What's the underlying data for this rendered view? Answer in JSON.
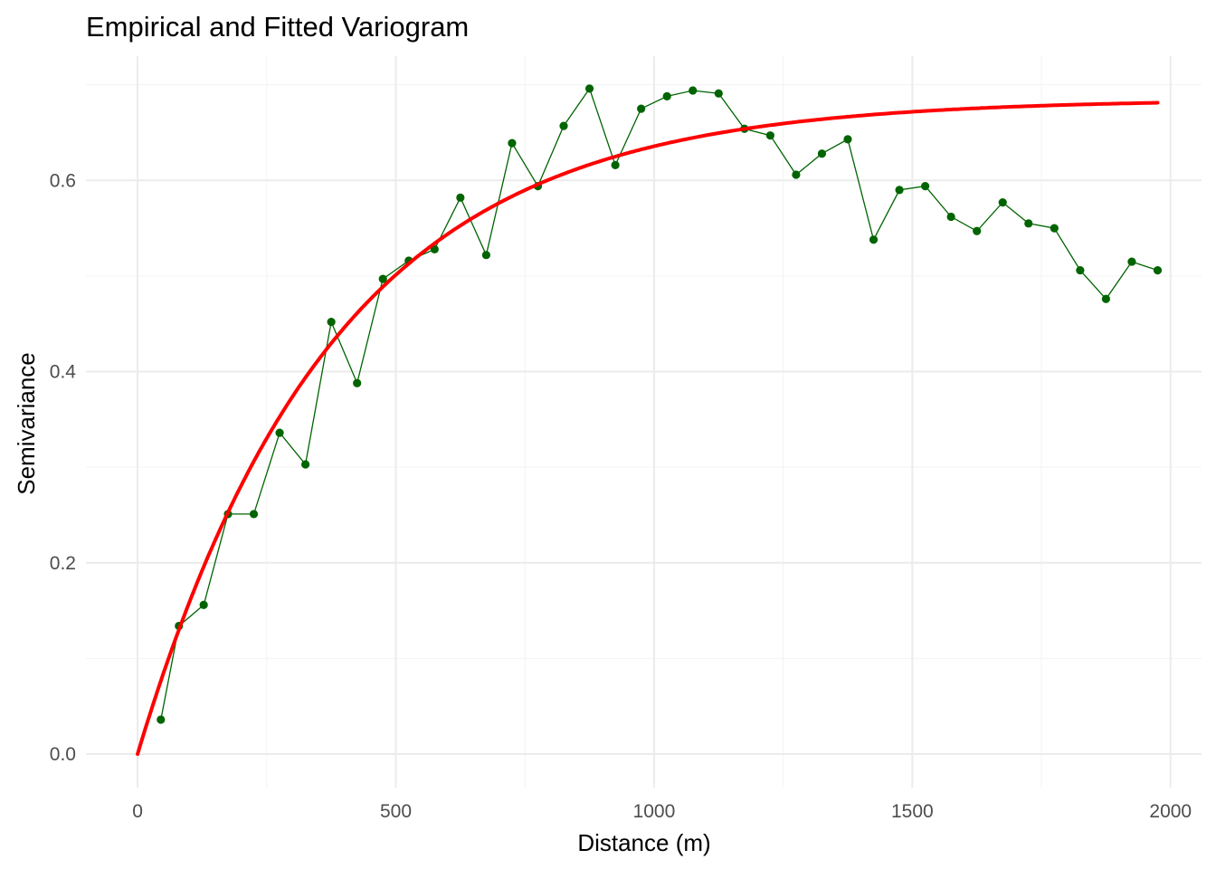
{
  "chart_data": {
    "type": "line",
    "title": "Empirical and Fitted Variogram",
    "xlabel": "Distance (m)",
    "ylabel": "Semivariance",
    "xlim": [
      -100,
      2060
    ],
    "ylim": [
      -0.035,
      0.73
    ],
    "x_ticks": [
      0,
      500,
      1000,
      1500,
      2000
    ],
    "x_tick_labels": [
      "0",
      "500",
      "1000",
      "1500",
      "2000"
    ],
    "y_ticks": [
      0.0,
      0.2,
      0.4,
      0.6
    ],
    "y_tick_labels": [
      "0.0",
      "0.2",
      "0.4",
      "0.6"
    ],
    "grid": true,
    "legend": "none",
    "series": [
      {
        "kind": "line+points",
        "color": "#006400",
        "x": [
          45,
          80,
          128,
          175,
          225,
          275,
          325,
          375,
          425,
          475,
          525,
          575,
          625,
          675,
          725,
          775,
          825,
          875,
          925,
          975,
          1025,
          1075,
          1125,
          1175,
          1225,
          1275,
          1325,
          1375,
          1425,
          1475,
          1525,
          1575,
          1625,
          1675,
          1725,
          1775,
          1825,
          1875,
          1925,
          1975
        ],
        "y": [
          0.036,
          0.134,
          0.156,
          0.251,
          0.251,
          0.336,
          0.303,
          0.452,
          0.388,
          0.497,
          0.516,
          0.528,
          0.582,
          0.522,
          0.639,
          0.594,
          0.657,
          0.696,
          0.616,
          0.675,
          0.688,
          0.694,
          0.691,
          0.654,
          0.647,
          0.606,
          0.628,
          0.643,
          0.538,
          0.59,
          0.594,
          0.562,
          0.547,
          0.577,
          0.555,
          0.55,
          0.506,
          0.476,
          0.515,
          0.506
        ]
      },
      {
        "kind": "fitted-curve",
        "model": "exponential",
        "color": "#ff0000",
        "nugget": 0.0,
        "psill": 0.685,
        "range": 380,
        "x_from": 0,
        "x_to": 1975
      }
    ]
  }
}
